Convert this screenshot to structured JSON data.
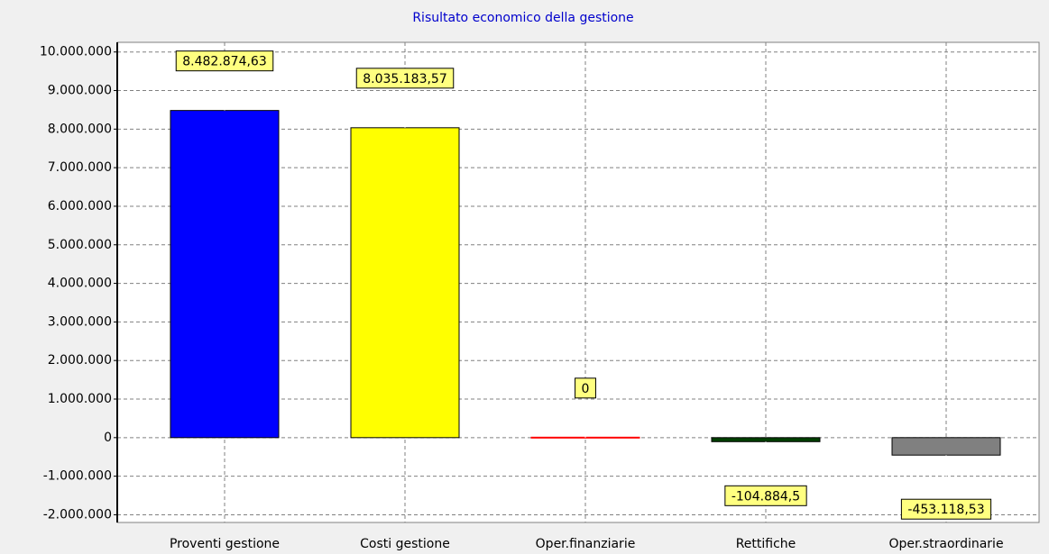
{
  "chart_data": {
    "type": "bar",
    "title": "Risultato economico della gestione",
    "categories": [
      "Proventi gestione",
      "Costi gestione",
      "Oper.finanziarie",
      "Rettifiche",
      "Oper.straordinarie"
    ],
    "values": [
      8482874.63,
      8035183.57,
      0,
      -104884.5,
      -453118.53
    ],
    "value_labels": [
      "8.482.874,63",
      "8.035.183,57",
      "0",
      "-104.884,5",
      "-453.118,53"
    ],
    "colors": [
      "#0000ff",
      "#ffff00",
      "#ff0000",
      "#004000",
      "#808080"
    ],
    "ylim": [
      -2200000,
      10250000
    ],
    "yticks": [
      {
        "value": 10000000,
        "label": "10.000.000"
      },
      {
        "value": 9000000,
        "label": "9.000.000"
      },
      {
        "value": 8000000,
        "label": "8.000.000"
      },
      {
        "value": 7000000,
        "label": "7.000.000"
      },
      {
        "value": 6000000,
        "label": "6.000.000"
      },
      {
        "value": 5000000,
        "label": "5.000.000"
      },
      {
        "value": 4000000,
        "label": "4.000.000"
      },
      {
        "value": 3000000,
        "label": "3.000.000"
      },
      {
        "value": 2000000,
        "label": "2.000.000"
      },
      {
        "value": 1000000,
        "label": "1.000.000"
      },
      0,
      {
        "value": -1000000,
        "label": "-1.000.000"
      },
      {
        "value": -2000000,
        "label": "-2.000.000"
      }
    ],
    "grid": true
  }
}
